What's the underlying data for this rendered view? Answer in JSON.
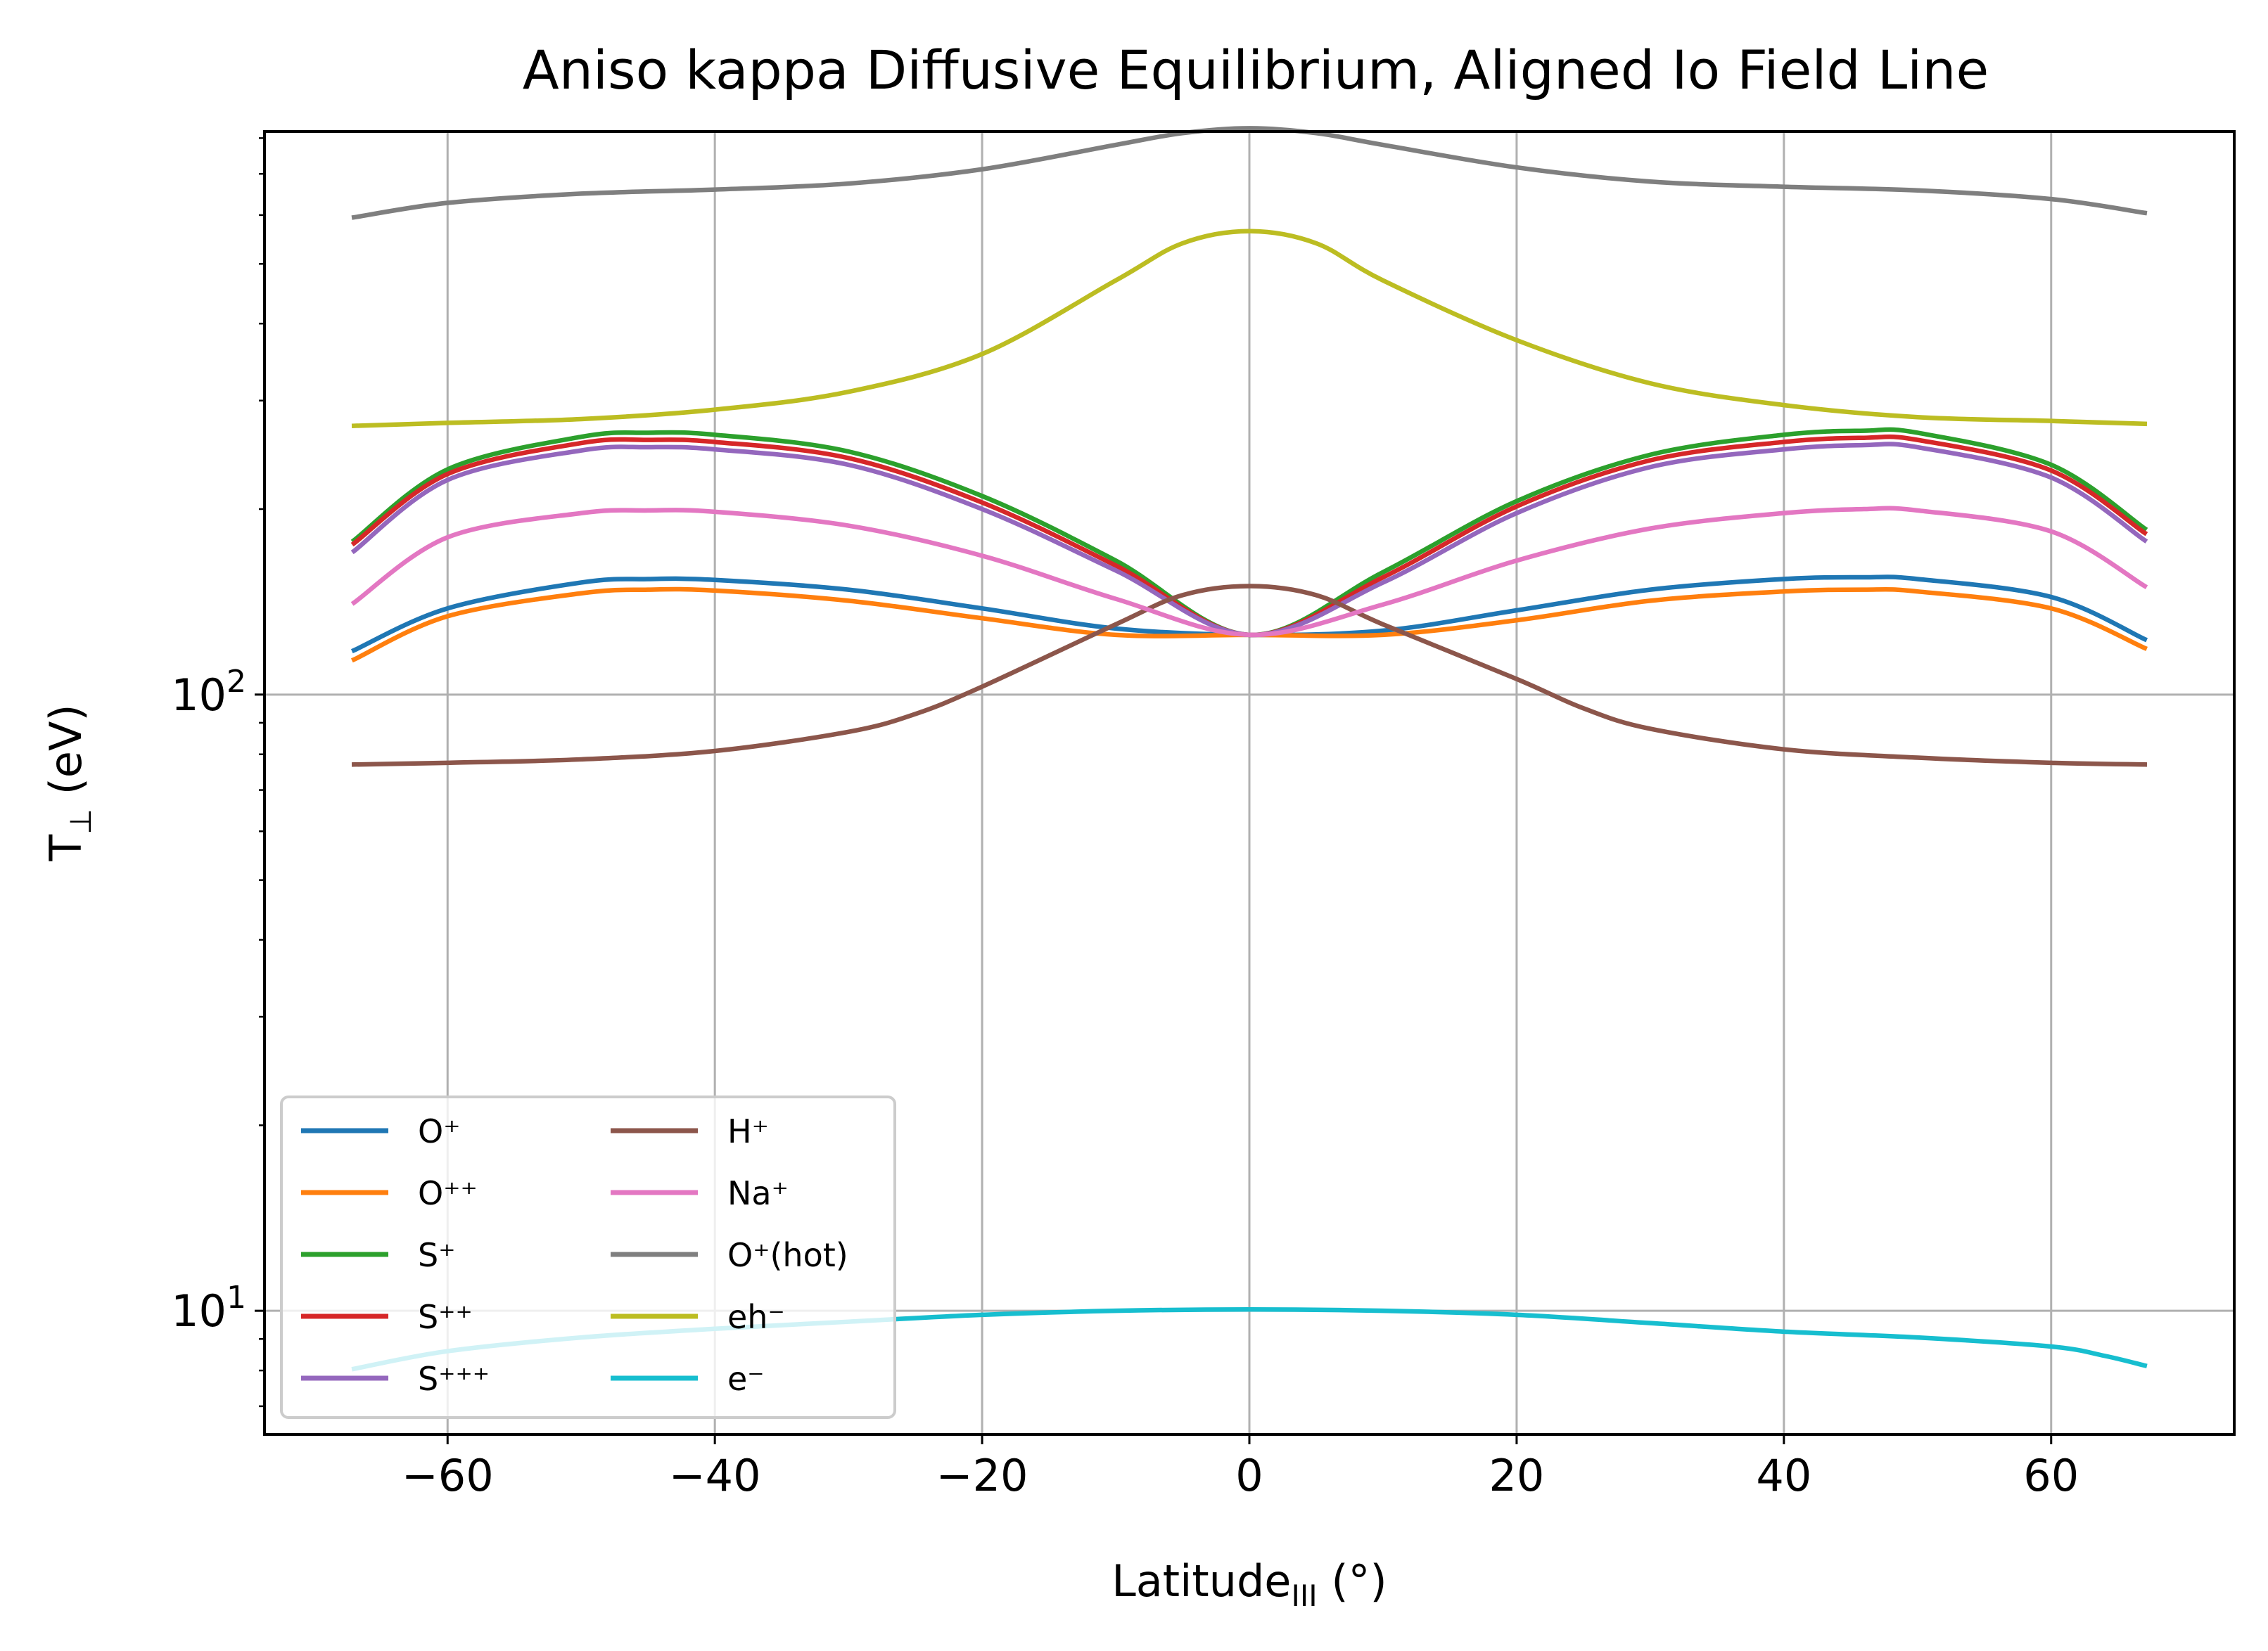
{
  "chart_data": {
    "type": "line",
    "title": "Aniso kappa Diffusive Equilibrium, Aligned Io Field Line",
    "xlabel": "Latitude",
    "xlabel_sub": "III",
    "xlabel_unit": " (°)",
    "ylabel": "T",
    "ylabel_sub": "⊥",
    "ylabel_unit": " (eV)",
    "xlim": [
      -73.7,
      73.7
    ],
    "ylim": [
      6.3,
      820
    ],
    "yscale": "log",
    "grid": true,
    "legend_position": "lower-left",
    "legend_columns": 2,
    "x_ticks": [
      -60,
      -40,
      -20,
      0,
      20,
      40,
      60
    ],
    "x_tick_labels": [
      "−60",
      "−40",
      "−20",
      "0",
      "20",
      "40",
      "60"
    ],
    "y_ticks": [
      {
        "value": 10,
        "base": "10",
        "exp": "1"
      },
      {
        "value": 100,
        "base": "10",
        "exp": "2"
      }
    ],
    "series": [
      {
        "name": "O⁺",
        "color": "#1f77b4",
        "x": [
          -67,
          -60,
          -50,
          -45,
          -40,
          -30,
          -20,
          -10,
          0,
          10,
          20,
          30,
          40,
          46,
          50,
          60,
          67
        ],
        "y": [
          118,
          138,
          152,
          154,
          153.5,
          148,
          138,
          128,
          125,
          127,
          137,
          148,
          154,
          155,
          154,
          144,
          123
        ]
      },
      {
        "name": "O⁺⁺",
        "color": "#ff7f0e",
        "x": [
          -67,
          -60,
          -50,
          -45,
          -40,
          -30,
          -20,
          -10,
          0,
          10,
          20,
          30,
          40,
          46,
          50,
          60,
          67
        ],
        "y": [
          114,
          134,
          146,
          148,
          147.5,
          142,
          133,
          125,
          125,
          125,
          132,
          142,
          147,
          148,
          147,
          138,
          119
        ]
      },
      {
        "name": "S⁺",
        "color": "#2ca02c",
        "x": [
          -67,
          -60,
          -50,
          -45,
          -40,
          -30,
          -20,
          -10,
          0,
          10,
          20,
          30,
          40,
          46,
          50,
          60,
          67
        ],
        "y": [
          178,
          232,
          262,
          266,
          264,
          248,
          210,
          165,
          125,
          158,
          206,
          245,
          264,
          268,
          266,
          236,
          186
        ]
      },
      {
        "name": "S⁺⁺",
        "color": "#d62728",
        "x": [
          -67,
          -60,
          -50,
          -45,
          -40,
          -30,
          -20,
          -10,
          0,
          10,
          20,
          30,
          40,
          46,
          50,
          60,
          67
        ],
        "y": [
          176,
          228,
          256,
          259,
          257,
          242,
          205,
          162,
          125,
          155,
          202,
          240,
          257,
          261,
          259,
          231,
          183
        ]
      },
      {
        "name": "S⁺⁺⁺",
        "color": "#9467bd",
        "x": [
          -67,
          -60,
          -50,
          -45,
          -40,
          -30,
          -20,
          -10,
          0,
          10,
          20,
          30,
          40,
          46,
          50,
          60,
          67
        ],
        "y": [
          171,
          223,
          249,
          252,
          250,
          236,
          200,
          159,
          125,
          152,
          197,
          234,
          250,
          254,
          252,
          225,
          178
        ]
      },
      {
        "name": "H⁺",
        "color": "#8c564b",
        "x": [
          -67,
          -60,
          -50,
          -40,
          -30,
          -25,
          -20,
          -10,
          -5,
          0,
          5,
          10,
          20,
          25,
          30,
          40,
          50,
          60,
          67
        ],
        "y": [
          77,
          77.5,
          78.5,
          81,
          87,
          93,
          103,
          130,
          145,
          150,
          145,
          130,
          106,
          95,
          88,
          81.5,
          79,
          77.5,
          77
        ]
      },
      {
        "name": "Na⁺",
        "color": "#e377c2",
        "x": [
          -67,
          -60,
          -50,
          -45,
          -40,
          -30,
          -20,
          -10,
          0,
          10,
          20,
          30,
          40,
          46,
          50,
          60,
          67
        ],
        "y": [
          141,
          180,
          197,
          199,
          198,
          188,
          168,
          143,
          125,
          140,
          165,
          186,
          197,
          200,
          199,
          184,
          150
        ]
      },
      {
        "name": "O⁺(hot)",
        "color": "#7f7f7f",
        "x": [
          -67,
          -60,
          -50,
          -40,
          -30,
          -20,
          -10,
          -5,
          0,
          5,
          10,
          20,
          30,
          40,
          50,
          60,
          67
        ],
        "y": [
          595,
          628,
          650,
          660,
          675,
          712,
          780,
          815,
          830,
          815,
          780,
          717,
          680,
          667,
          658,
          637,
          605
        ]
      },
      {
        "name": "eh⁻",
        "color": "#bcbd22",
        "x": [
          -67,
          -60,
          -50,
          -40,
          -30,
          -20,
          -10,
          -5,
          0,
          5,
          10,
          20,
          30,
          40,
          50,
          60,
          67
        ],
        "y": [
          273,
          276,
          280,
          290,
          310,
          357,
          470,
          540,
          565,
          540,
          470,
          376,
          320,
          295,
          282,
          278,
          275
        ]
      },
      {
        "name": "e⁻",
        "color": "#17becf",
        "x": [
          -67,
          -60,
          -50,
          -40,
          -30,
          -20,
          -10,
          0,
          10,
          20,
          30,
          40,
          50,
          60,
          64,
          67
        ],
        "y": [
          8.05,
          8.6,
          9.05,
          9.35,
          9.6,
          9.85,
          10.0,
          10.05,
          10.0,
          9.85,
          9.55,
          9.25,
          9.05,
          8.75,
          8.45,
          8.15
        ]
      }
    ]
  }
}
